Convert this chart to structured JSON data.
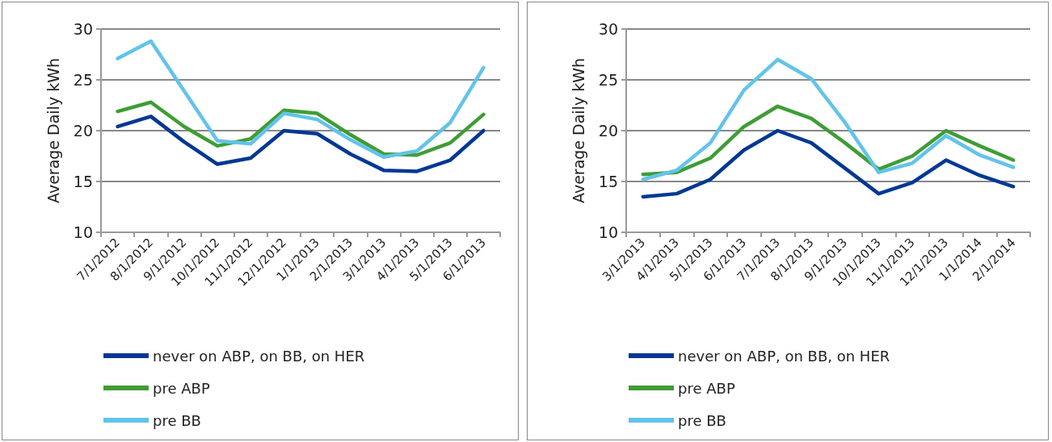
{
  "chart_data": [
    {
      "type": "line",
      "ylabel": "Average Daily kWh",
      "categories": [
        "7/1/2012",
        "8/1/2012",
        "9/1/2012",
        "10/1/2012",
        "11/1/2012",
        "12/1/2012",
        "1/1/2013",
        "2/1/2013",
        "3/1/2013",
        "4/1/2013",
        "5/1/2013",
        "6/1/2013"
      ],
      "series": [
        {
          "name": "never on ABP, on BB, on HER",
          "color": "#003893",
          "values": [
            20.4,
            21.4,
            18.9,
            16.7,
            17.3,
            20.0,
            19.7,
            17.7,
            16.1,
            16.0,
            17.1,
            20.0
          ]
        },
        {
          "name": "pre ABP",
          "color": "#3f9d35",
          "values": [
            21.9,
            22.8,
            20.4,
            18.5,
            19.2,
            22.0,
            21.7,
            19.6,
            17.7,
            17.6,
            18.8,
            21.6
          ]
        },
        {
          "name": "pre BB",
          "color": "#63c3ea",
          "values": [
            27.1,
            28.8,
            23.9,
            19.0,
            18.7,
            21.7,
            21.1,
            19.1,
            17.4,
            18.0,
            20.8,
            26.2
          ]
        }
      ],
      "ylim": [
        10,
        30
      ],
      "yticks": [
        10,
        15,
        20,
        25,
        30
      ],
      "grid": "y",
      "legend": "bottom",
      "marker": "none",
      "line_style": "solid"
    },
    {
      "type": "line",
      "ylabel": "Average Daily kWh",
      "categories": [
        "3/1/2013",
        "4/1/2013",
        "5/1/2013",
        "6/1/2013",
        "7/1/2013",
        "8/1/2013",
        "9/1/2013",
        "10/1/2013",
        "11/1/2013",
        "12/1/2013",
        "1/1/2014",
        "2/1/2014"
      ],
      "series": [
        {
          "name": "never on ABP, on BB, on HER",
          "color": "#003893",
          "values": [
            13.5,
            13.8,
            15.2,
            18.1,
            20.0,
            18.8,
            16.3,
            13.8,
            14.9,
            17.1,
            15.6,
            14.5
          ]
        },
        {
          "name": "pre ABP",
          "color": "#3f9d35",
          "values": [
            15.7,
            15.9,
            17.3,
            20.4,
            22.4,
            21.2,
            18.8,
            16.2,
            17.5,
            20.0,
            18.5,
            17.1
          ]
        },
        {
          "name": "pre BB",
          "color": "#63c3ea",
          "values": [
            15.2,
            16.1,
            18.8,
            24.0,
            27.0,
            25.1,
            20.8,
            15.9,
            16.8,
            19.5,
            17.6,
            16.4
          ]
        }
      ],
      "ylim": [
        10,
        30
      ],
      "yticks": [
        10,
        15,
        20,
        25,
        30
      ],
      "grid": "y",
      "legend": "bottom",
      "marker": "none",
      "line_style": "solid"
    }
  ]
}
